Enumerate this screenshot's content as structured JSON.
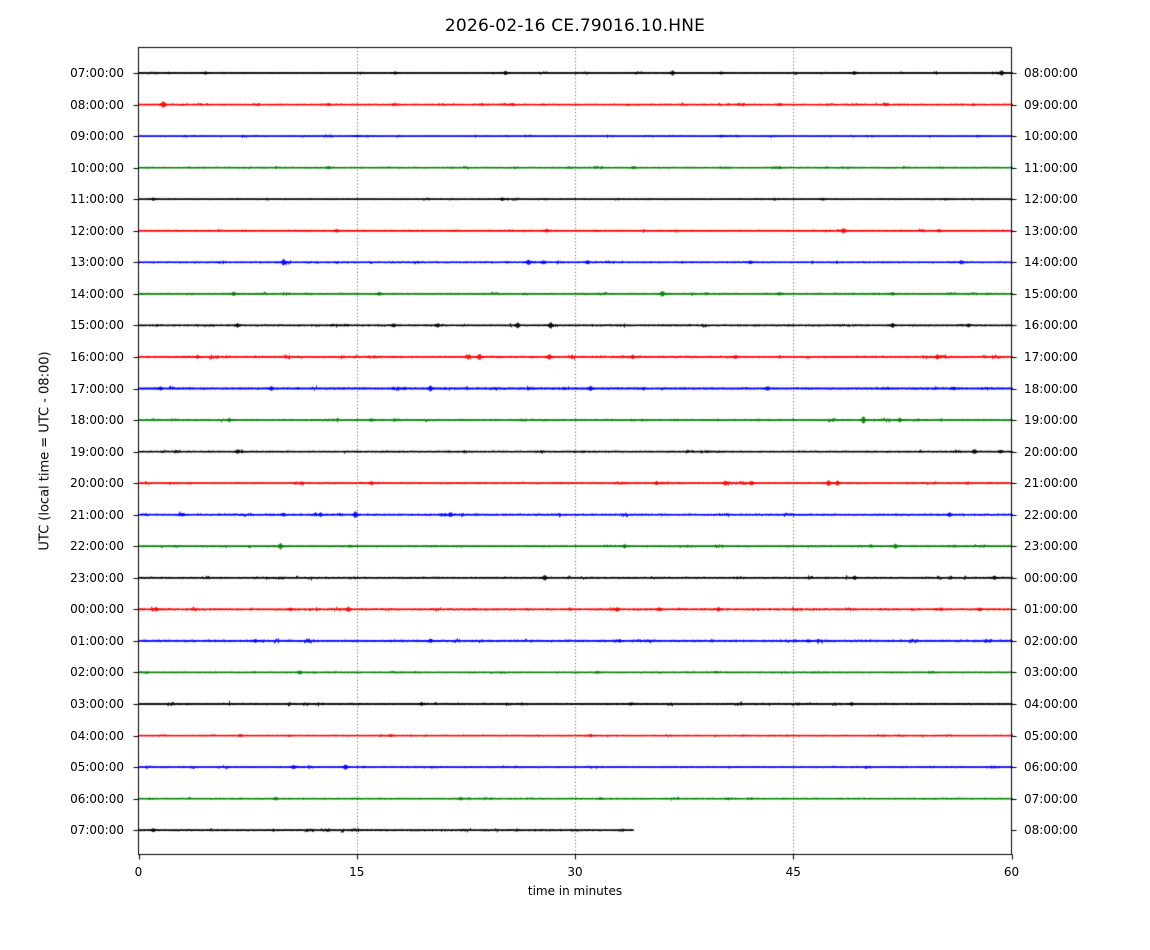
{
  "chart_data": {
    "type": "line",
    "subtype": "seismogram-helicorder-dayplot",
    "title": "2026-02-16 CE.79016.10.HNE",
    "xlabel": "time in minutes",
    "ylabel": "UTC (local time = UTC - 08:00)",
    "xlim": [
      0,
      60
    ],
    "x_ticks": [
      0,
      15,
      30,
      45,
      60
    ],
    "grid_vertical_dotted_minutes": [
      15,
      30,
      45
    ],
    "legend": "none",
    "palette": {
      "k": "#000000",
      "r": "#ff0000",
      "b": "#0000ff",
      "g": "#008000"
    },
    "rows": [
      {
        "left_label": "07:00:00",
        "right_label": "08:00:00",
        "color": "k",
        "start_min": 0,
        "duration_min": 60,
        "noise": 0.5,
        "spikes": [
          [
            4.6,
            1.2
          ],
          [
            17.6,
            1.2
          ],
          [
            25.2,
            1.3
          ],
          [
            36.7,
            1.8
          ],
          [
            40,
            1.2
          ],
          [
            49.2,
            1.4
          ],
          [
            59.3,
            2.0
          ]
        ]
      },
      {
        "left_label": "08:00:00",
        "right_label": "09:00:00",
        "color": "r",
        "start_min": 0,
        "duration_min": 60,
        "noise": 0.6,
        "spikes": [
          [
            1.7,
            2.6
          ],
          [
            13,
            1.0
          ],
          [
            25.7,
            1.2
          ],
          [
            44,
            1.0
          ]
        ]
      },
      {
        "left_label": "09:00:00",
        "right_label": "10:00:00",
        "color": "b",
        "start_min": 0,
        "duration_min": 60,
        "noise": 0.45,
        "spikes": [
          [
            15,
            0.9
          ],
          [
            40,
            0.8
          ]
        ]
      },
      {
        "left_label": "10:00:00",
        "right_label": "11:00:00",
        "color": "g",
        "start_min": 0,
        "duration_min": 60,
        "noise": 0.5,
        "spikes": [
          [
            13,
            1.0
          ],
          [
            34,
            1.2
          ],
          [
            44,
            0.9
          ]
        ]
      },
      {
        "left_label": "11:00:00",
        "right_label": "12:00:00",
        "color": "k",
        "start_min": 0,
        "duration_min": 60,
        "noise": 0.45,
        "spikes": [
          [
            1,
            1.0
          ],
          [
            25,
            1.2
          ],
          [
            47,
            0.8
          ]
        ]
      },
      {
        "left_label": "12:00:00",
        "right_label": "13:00:00",
        "color": "r",
        "start_min": 0,
        "duration_min": 60,
        "noise": 0.55,
        "spikes": [
          [
            13.6,
            1.4
          ],
          [
            28,
            1.2
          ],
          [
            48.4,
            2.2
          ],
          [
            55,
            1.3
          ]
        ]
      },
      {
        "left_label": "13:00:00",
        "right_label": "14:00:00",
        "color": "b",
        "start_min": 0,
        "duration_min": 60,
        "noise": 0.6,
        "spikes": [
          [
            9.9,
            2.4
          ],
          [
            26.8,
            2.2
          ],
          [
            27.8,
            1.6
          ],
          [
            30.8,
            1.5
          ],
          [
            42,
            1.2
          ],
          [
            56.5,
            1.4
          ]
        ]
      },
      {
        "left_label": "14:00:00",
        "right_label": "15:00:00",
        "color": "g",
        "start_min": 0,
        "duration_min": 60,
        "noise": 0.6,
        "spikes": [
          [
            6.5,
            1.6
          ],
          [
            16.5,
            1.3
          ],
          [
            36,
            2.4
          ],
          [
            44,
            1.2
          ],
          [
            51.8,
            1.5
          ]
        ]
      },
      {
        "left_label": "15:00:00",
        "right_label": "16:00:00",
        "color": "k",
        "start_min": 0,
        "duration_min": 60,
        "noise": 0.65,
        "spikes": [
          [
            6.8,
            1.7
          ],
          [
            17.5,
            1.5
          ],
          [
            20.5,
            1.6
          ],
          [
            26,
            2.5
          ],
          [
            28.3,
            2.6
          ],
          [
            51.8,
            1.8
          ],
          [
            57,
            1.2
          ]
        ]
      },
      {
        "left_label": "16:00:00",
        "right_label": "17:00:00",
        "color": "r",
        "start_min": 0,
        "duration_min": 60,
        "noise": 0.9,
        "spikes": [
          [
            4,
            1.3
          ],
          [
            23.4,
            2.4
          ],
          [
            28.2,
            2.0
          ],
          [
            33.9,
            1.5
          ],
          [
            41,
            1.4
          ],
          [
            54.9,
            1.9
          ]
        ]
      },
      {
        "left_label": "17:00:00",
        "right_label": "18:00:00",
        "color": "b",
        "start_min": 0,
        "duration_min": 60,
        "noise": 0.85,
        "spikes": [
          [
            1.5,
            1.6
          ],
          [
            9.1,
            1.8
          ],
          [
            20,
            2.2
          ],
          [
            31,
            1.7
          ],
          [
            43.2,
            1.6
          ],
          [
            56,
            1.4
          ]
        ]
      },
      {
        "left_label": "18:00:00",
        "right_label": "19:00:00",
        "color": "g",
        "start_min": 0,
        "duration_min": 60,
        "noise": 0.7,
        "spikes": [
          [
            6.2,
            1.5
          ],
          [
            16,
            1.1
          ],
          [
            49.8,
            2.6
          ],
          [
            52.3,
            1.6
          ]
        ]
      },
      {
        "left_label": "19:00:00",
        "right_label": "20:00:00",
        "color": "k",
        "start_min": 0,
        "duration_min": 60,
        "noise": 0.55,
        "spikes": [
          [
            6.8,
            1.4
          ],
          [
            57.4,
            1.8
          ],
          [
            59.2,
            1.5
          ]
        ]
      },
      {
        "left_label": "20:00:00",
        "right_label": "21:00:00",
        "color": "r",
        "start_min": 0,
        "duration_min": 60,
        "noise": 0.7,
        "spikes": [
          [
            16,
            1.5
          ],
          [
            35.6,
            1.5
          ],
          [
            40.3,
            2.3
          ],
          [
            42.1,
            1.8
          ],
          [
            47.4,
            2.2
          ],
          [
            48,
            2.0
          ]
        ]
      },
      {
        "left_label": "21:00:00",
        "right_label": "22:00:00",
        "color": "b",
        "start_min": 0,
        "duration_min": 60,
        "noise": 0.8,
        "spikes": [
          [
            3,
            1.6
          ],
          [
            9.9,
            1.7
          ],
          [
            12.5,
            1.6
          ],
          [
            14.9,
            2.6
          ],
          [
            21.4,
            1.9
          ],
          [
            55.7,
            1.7
          ]
        ]
      },
      {
        "left_label": "22:00:00",
        "right_label": "23:00:00",
        "color": "g",
        "start_min": 0,
        "duration_min": 60,
        "noise": 0.65,
        "spikes": [
          [
            9.7,
            2.4
          ],
          [
            33.4,
            1.5
          ],
          [
            52,
            1.6
          ]
        ]
      },
      {
        "left_label": "23:00:00",
        "right_label": "00:00:00",
        "color": "k",
        "start_min": 0,
        "duration_min": 60,
        "noise": 0.7,
        "spikes": [
          [
            27.9,
            2.4
          ],
          [
            49.2,
            1.7
          ],
          [
            58.8,
            1.6
          ]
        ]
      },
      {
        "left_label": "00:00:00",
        "right_label": "01:00:00",
        "color": "r",
        "start_min": 0,
        "duration_min": 60,
        "noise": 0.9,
        "spikes": [
          [
            1.2,
            1.5
          ],
          [
            10.4,
            1.4
          ],
          [
            14.4,
            2.2
          ],
          [
            32.9,
            1.5
          ],
          [
            35.8,
            1.4
          ],
          [
            39.8,
            1.5
          ],
          [
            57.8,
            1.4
          ]
        ]
      },
      {
        "left_label": "01:00:00",
        "right_label": "02:00:00",
        "color": "b",
        "start_min": 0,
        "duration_min": 60,
        "noise": 0.95,
        "spikes": [
          [
            8,
            1.2
          ],
          [
            20,
            1.3
          ],
          [
            33,
            1.2
          ],
          [
            46,
            1.3
          ]
        ]
      },
      {
        "left_label": "02:00:00",
        "right_label": "03:00:00",
        "color": "g",
        "start_min": 0,
        "duration_min": 60,
        "noise": 0.5,
        "spikes": [
          [
            11,
            1.4
          ],
          [
            31.5,
            0.9
          ]
        ]
      },
      {
        "left_label": "03:00:00",
        "right_label": "04:00:00",
        "color": "k",
        "start_min": 0,
        "duration_min": 60,
        "noise": 0.75,
        "spikes": [
          [
            19.4,
            1.2
          ],
          [
            33.8,
            1.3
          ],
          [
            49,
            1.2
          ]
        ]
      },
      {
        "left_label": "04:00:00",
        "right_label": "05:00:00",
        "color": "r",
        "start_min": 0,
        "duration_min": 60,
        "noise": 0.45,
        "spikes": [
          [
            7,
            1.0
          ],
          [
            17.3,
            1.0
          ],
          [
            31,
            0.9
          ]
        ]
      },
      {
        "left_label": "05:00:00",
        "right_label": "06:00:00",
        "color": "b",
        "start_min": 0,
        "duration_min": 60,
        "noise": 0.6,
        "spikes": [
          [
            10.6,
            1.6
          ],
          [
            14.2,
            2.2
          ]
        ]
      },
      {
        "left_label": "06:00:00",
        "right_label": "07:00:00",
        "color": "g",
        "start_min": 0,
        "duration_min": 60,
        "noise": 0.5,
        "spikes": [
          [
            9.4,
            1.2
          ],
          [
            22.1,
            1.1
          ],
          [
            31.7,
            1.0
          ]
        ]
      },
      {
        "left_label": "07:00:00",
        "right_label": "08:00:00",
        "color": "k",
        "start_min": 0,
        "duration_min": 34,
        "noise": 0.7,
        "spikes": [
          [
            1,
            1.4
          ]
        ]
      }
    ]
  }
}
